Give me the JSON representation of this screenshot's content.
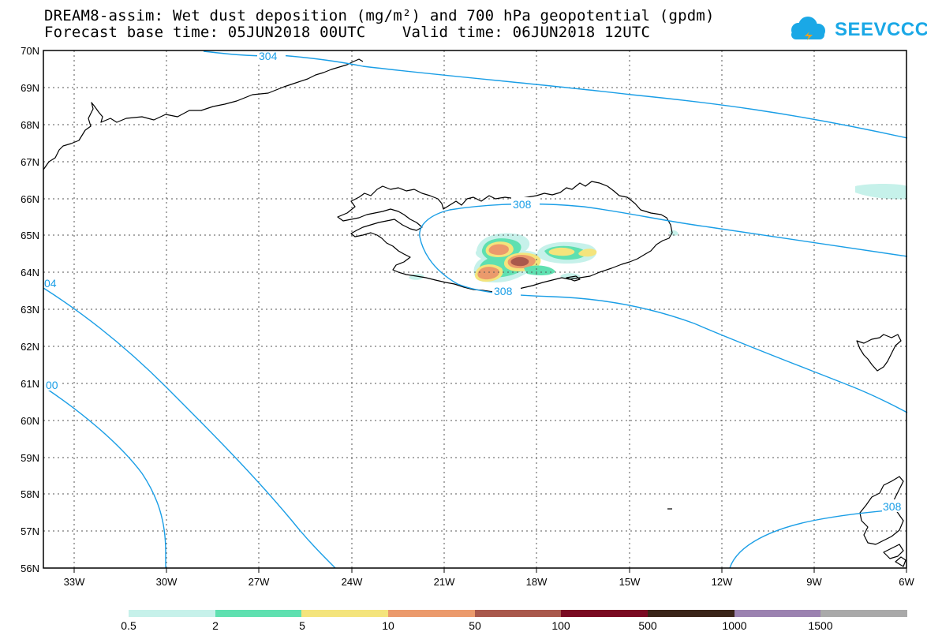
{
  "title": {
    "line1": "DREAM8-assim: Wet dust deposition (mg/m²) and 700 hPa geopotential (gpdm)",
    "line2": "Forecast base time: 05JUN2018 00UTC    Valid time: 06JUN2018 12UTC"
  },
  "logo": {
    "text": "SEEVCCC",
    "icon": "cloud-icon",
    "color": "#1aa8e6"
  },
  "map": {
    "lat_labels": [
      "70N",
      "69N",
      "68N",
      "67N",
      "66N",
      "65N",
      "64N",
      "63N",
      "62N",
      "61N",
      "60N",
      "59N",
      "58N",
      "57N",
      "56N"
    ],
    "lon_labels": [
      "33W",
      "30W",
      "27W",
      "24W",
      "21W",
      "18W",
      "15W",
      "12W",
      "9W",
      "6W"
    ],
    "contour_labels": [
      "304",
      "308",
      "308",
      "04",
      "00",
      "308"
    ],
    "contour_color": "#1a9ee6"
  },
  "colorbar": {
    "colors": [
      "#c6f1ea",
      "#5fe0b0",
      "#f4e47c",
      "#eb9a6c",
      "#a9584c",
      "#7a0a22",
      "#3a2418",
      "#9b82b0",
      "#a9a9a9"
    ],
    "labels": [
      "0.5",
      "2",
      "5",
      "10",
      "50",
      "100",
      "500",
      "1000",
      "1500"
    ]
  }
}
